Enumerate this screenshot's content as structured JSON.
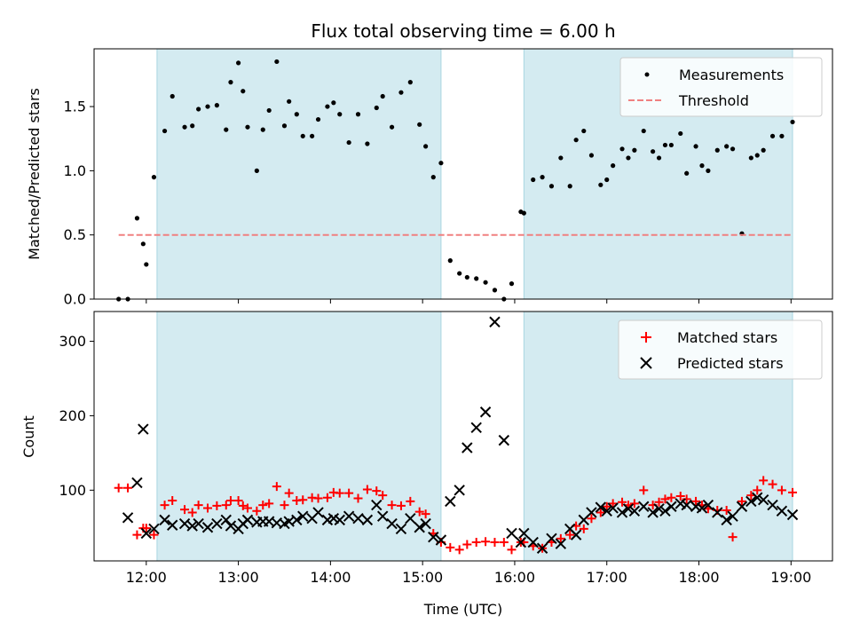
{
  "chart_data": [
    {
      "type": "scatter",
      "title": "Flux total observing time = 6.00 h",
      "xlabel": "",
      "ylabel": "Matched/Predicted stars",
      "xlim": [
        "11:26",
        "19:27"
      ],
      "ylim": [
        0,
        1.95
      ],
      "yticks": [
        0.0,
        0.5,
        1.0,
        1.5
      ],
      "ytick_labels": [
        "0.0",
        "0.5",
        "1.0",
        "1.5"
      ],
      "shaded_intervals": [
        [
          "12:07",
          "15:12"
        ],
        [
          "16:06",
          "19:01"
        ]
      ],
      "shade_color": "#d4ebf1",
      "legend_placement": "upper right",
      "series": [
        {
          "name": "Measurements",
          "marker": "dot",
          "color": "#000000",
          "x": [
            "11:42",
            "11:48",
            "11:54",
            "11:58",
            "12:00",
            "12:05",
            "12:12",
            "12:17",
            "12:25",
            "12:30",
            "12:34",
            "12:40",
            "12:46",
            "12:52",
            "12:55",
            "13:00",
            "13:03",
            "13:06",
            "13:12",
            "13:16",
            "13:20",
            "13:25",
            "13:30",
            "13:33",
            "13:38",
            "13:42",
            "13:48",
            "13:52",
            "13:58",
            "14:02",
            "14:06",
            "14:12",
            "14:18",
            "14:24",
            "14:30",
            "14:34",
            "14:40",
            "14:46",
            "14:52",
            "14:58",
            "15:02",
            "15:07",
            "15:12",
            "15:18",
            "15:24",
            "15:29",
            "15:35",
            "15:41",
            "15:47",
            "15:53",
            "15:58",
            "16:04",
            "16:06",
            "16:12",
            "16:18",
            "16:24",
            "16:30",
            "16:36",
            "16:40",
            "16:45",
            "16:50",
            "16:56",
            "17:00",
            "17:04",
            "17:10",
            "17:14",
            "17:18",
            "17:24",
            "17:30",
            "17:34",
            "17:38",
            "17:42",
            "17:48",
            "17:52",
            "17:58",
            "18:02",
            "18:06",
            "18:12",
            "18:18",
            "18:22",
            "18:28",
            "18:34",
            "18:38",
            "18:42",
            "18:48",
            "18:54",
            "19:01"
          ],
          "y": [
            0.0,
            0.0,
            0.63,
            0.43,
            0.27,
            0.95,
            1.31,
            1.58,
            1.34,
            1.35,
            1.48,
            1.5,
            1.51,
            1.32,
            1.69,
            1.84,
            1.62,
            1.34,
            1.0,
            1.32,
            1.47,
            1.85,
            1.35,
            1.54,
            1.44,
            1.27,
            1.27,
            1.4,
            1.5,
            1.53,
            1.44,
            1.22,
            1.44,
            1.21,
            1.49,
            1.58,
            1.34,
            1.61,
            1.69,
            1.36,
            1.19,
            0.95,
            1.06,
            0.3,
            0.2,
            0.17,
            0.16,
            0.13,
            0.07,
            0.0,
            0.12,
            0.68,
            0.67,
            0.93,
            0.95,
            0.88,
            1.1,
            0.88,
            1.24,
            1.31,
            1.12,
            0.89,
            0.93,
            1.04,
            1.17,
            1.1,
            1.16,
            1.31,
            1.15,
            1.1,
            1.2,
            1.2,
            1.29,
            0.98,
            1.19,
            1.04,
            1.0,
            1.16,
            1.19,
            1.17,
            0.51,
            1.1,
            1.12,
            1.16,
            1.27,
            1.27,
            1.38
          ]
        },
        {
          "name": "Threshold",
          "marker": "dashed-line",
          "color": "#f08080",
          "x": [
            "11:42",
            "19:01"
          ],
          "y": [
            0.5,
            0.5
          ]
        }
      ]
    },
    {
      "type": "scatter",
      "title": "",
      "xlabel": "Time (UTC)",
      "ylabel": "Count",
      "xlim": [
        "11:26",
        "19:27"
      ],
      "ylim": [
        5,
        340
      ],
      "yticks": [
        100,
        200,
        300
      ],
      "ytick_labels": [
        "100",
        "200",
        "300"
      ],
      "xticks": [
        "12:00",
        "13:00",
        "14:00",
        "15:00",
        "16:00",
        "17:00",
        "18:00",
        "19:00"
      ],
      "shaded_intervals": [
        [
          "12:07",
          "15:12"
        ],
        [
          "16:06",
          "19:01"
        ]
      ],
      "shade_color": "#d4ebf1",
      "legend_placement": "upper right",
      "series": [
        {
          "name": "Matched stars",
          "marker": "plus",
          "color": "#ff0000",
          "x": [
            "11:42",
            "11:48",
            "11:54",
            "11:58",
            "12:00",
            "12:05",
            "12:12",
            "12:17",
            "12:25",
            "12:30",
            "12:34",
            "12:40",
            "12:46",
            "12:52",
            "12:55",
            "13:00",
            "13:03",
            "13:06",
            "13:12",
            "13:16",
            "13:20",
            "13:25",
            "13:30",
            "13:33",
            "13:38",
            "13:42",
            "13:48",
            "13:52",
            "13:58",
            "14:02",
            "14:06",
            "14:12",
            "14:18",
            "14:24",
            "14:30",
            "14:34",
            "14:40",
            "14:46",
            "14:52",
            "14:58",
            "15:02",
            "15:07",
            "15:12",
            "15:18",
            "15:24",
            "15:29",
            "15:35",
            "15:41",
            "15:47",
            "15:53",
            "15:58",
            "16:04",
            "16:06",
            "16:12",
            "16:18",
            "16:24",
            "16:30",
            "16:36",
            "16:40",
            "16:45",
            "16:50",
            "16:56",
            "17:00",
            "17:04",
            "17:10",
            "17:14",
            "17:18",
            "17:24",
            "17:30",
            "17:34",
            "17:38",
            "17:42",
            "17:48",
            "17:52",
            "17:58",
            "18:02",
            "18:06",
            "18:12",
            "18:18",
            "18:22",
            "18:28",
            "18:34",
            "18:38",
            "18:42",
            "18:48",
            "18:54",
            "19:01"
          ],
          "y": [
            103,
            103,
            40,
            49,
            49,
            40,
            80,
            86,
            74,
            70,
            80,
            76,
            79,
            80,
            86,
            86,
            79,
            76,
            72,
            80,
            82,
            105,
            80,
            96,
            86,
            87,
            90,
            89,
            90,
            97,
            96,
            96,
            89,
            101,
            99,
            93,
            80,
            79,
            85,
            71,
            68,
            42,
            30,
            23,
            20,
            27,
            30,
            31,
            30,
            30,
            20,
            30,
            30,
            25,
            22,
            30,
            35,
            40,
            52,
            48,
            62,
            70,
            78,
            82,
            84,
            80,
            82,
            100,
            80,
            84,
            88,
            90,
            92,
            88,
            85,
            80,
            75,
            73,
            73,
            37,
            85,
            93,
            100,
            113,
            108,
            100,
            97
          ]
        },
        {
          "name": "Predicted stars",
          "marker": "x",
          "color": "#000000",
          "x": [
            "11:48",
            "11:54",
            "11:58",
            "12:00",
            "12:05",
            "12:12",
            "12:17",
            "12:25",
            "12:30",
            "12:34",
            "12:40",
            "12:46",
            "12:52",
            "12:55",
            "13:00",
            "13:03",
            "13:06",
            "13:12",
            "13:16",
            "13:20",
            "13:25",
            "13:30",
            "13:33",
            "13:38",
            "13:42",
            "13:48",
            "13:52",
            "13:58",
            "14:02",
            "14:06",
            "14:12",
            "14:18",
            "14:24",
            "14:30",
            "14:34",
            "14:40",
            "14:46",
            "14:52",
            "14:58",
            "15:02",
            "15:07",
            "15:12",
            "15:18",
            "15:24",
            "15:29",
            "15:35",
            "15:41",
            "15:47",
            "15:53",
            "15:58",
            "16:04",
            "16:06",
            "16:12",
            "16:18",
            "16:24",
            "16:30",
            "16:36",
            "16:40",
            "16:45",
            "16:50",
            "16:56",
            "17:00",
            "17:04",
            "17:10",
            "17:14",
            "17:18",
            "17:24",
            "17:30",
            "17:34",
            "17:38",
            "17:42",
            "17:48",
            "17:52",
            "17:58",
            "18:02",
            "18:06",
            "18:12",
            "18:18",
            "18:22",
            "18:28",
            "18:34",
            "18:38",
            "18:42",
            "18:48",
            "18:54",
            "19:01"
          ],
          "y": [
            63,
            110,
            182,
            42,
            48,
            60,
            53,
            55,
            52,
            55,
            50,
            55,
            60,
            52,
            48,
            55,
            60,
            57,
            58,
            58,
            56,
            55,
            58,
            60,
            65,
            62,
            70,
            60,
            62,
            60,
            65,
            62,
            60,
            80,
            65,
            55,
            48,
            62,
            50,
            55,
            37,
            33,
            85,
            100,
            157,
            184,
            205,
            326,
            167,
            42,
            30,
            42,
            30,
            22,
            35,
            28,
            48,
            40,
            60,
            70,
            77,
            72,
            76,
            70,
            75,
            72,
            78,
            70,
            75,
            72,
            78,
            82,
            80,
            78,
            76,
            80,
            70,
            60,
            65,
            78,
            85,
            90,
            87,
            80,
            72,
            67
          ]
        }
      ]
    }
  ]
}
